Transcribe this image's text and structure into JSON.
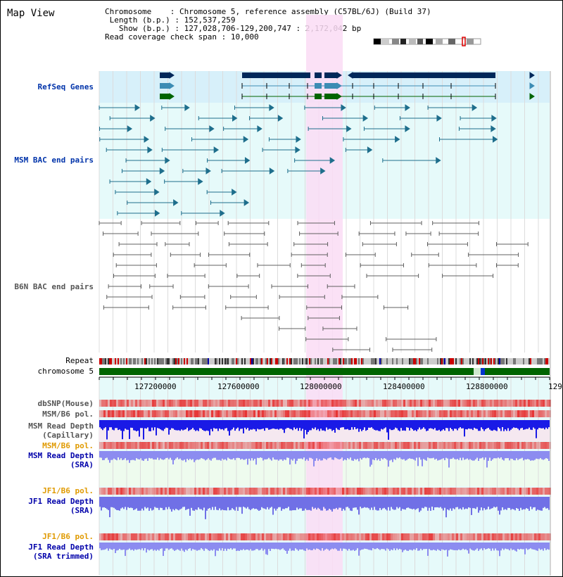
{
  "title": "Map View",
  "info": {
    "chromosome_label": "Chromosome",
    "chromosome_value": "Chromosome 5, reference assembly (C57BL/6J) (Build 37)",
    "length_label": "Length (b.p.)",
    "length_value": "152,537,259",
    "show_label": "Show (b.p.)",
    "show_value": "127,028,706-129,200,747 : 2,172,042 bp",
    "coverage_label": "Read coverage check span",
    "coverage_value": "10,000"
  },
  "tracks": {
    "refseq": "RefSeq Genes",
    "msm_bac": "MSM BAC end pairs",
    "b6n_bac": "B6N BAC end pairs",
    "repeat": "Repeat",
    "chromosome": "chromosome 5",
    "dbsnp": "dbSNP(Mouse)",
    "msm_b6_pol_1": "MSM/B6 pol.",
    "msm_read_depth_cap_1": "MSM Read Depth",
    "msm_read_depth_cap_2": "(Capillary)",
    "msm_b6_pol_2": "MSM/B6 pol.",
    "msm_read_depth_sra_1": "MSM Read Depth",
    "msm_read_depth_sra_2": "(SRA)",
    "jf1_b6_pol_1": "JF1/B6 pol.",
    "jf1_read_depth_sra_1": "JF1 Read Depth",
    "jf1_read_depth_sra_2": "(SRA)",
    "jf1_b6_pol_2": "JF1/B6 pol.",
    "jf1_read_depth_trim_1": "JF1 Read Depth",
    "jf1_read_depth_trim_2": "(SRA trimmed)"
  },
  "ruler": [
    "127200000",
    "127600000",
    "128000000",
    "128400000",
    "128800000",
    "129"
  ],
  "colors": {
    "refseq_band": "#d7f0fa",
    "lane_band": "#e6fafa",
    "highlight": "#fadcf5",
    "gene_dark": "#00285a",
    "gene_mid": "#3c8cb4",
    "gene_green": "#006400",
    "msm_feature": "#1e6e8c",
    "b6n_feature": "#606060",
    "chrom_bar": "#006400"
  }
}
